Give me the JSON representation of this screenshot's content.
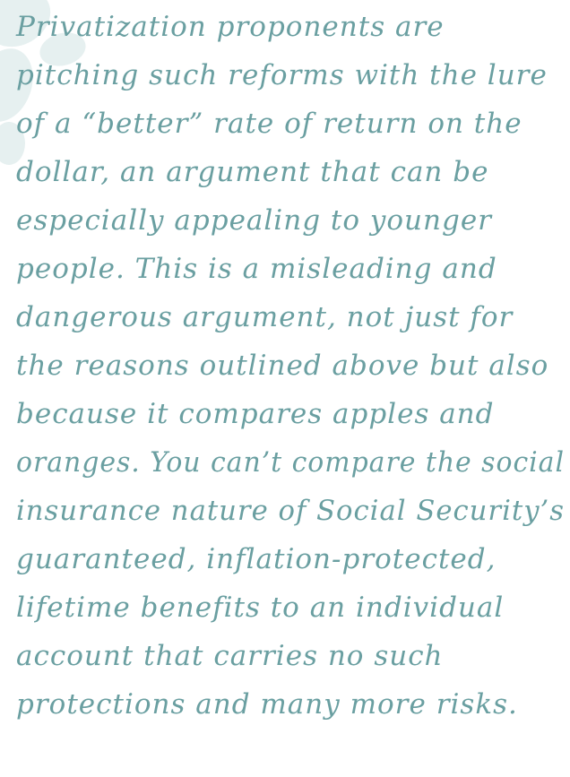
{
  "paragraph": {
    "lines": [
      "Privatization proponents are",
      "pitching such reforms with the lure",
      "of a “better” rate of return on the",
      "dollar, an argument that can be",
      "especially appealing to younger",
      "people. This is a misleading and",
      "dangerous argument, not just for",
      "the reasons outlined above but also",
      "because it compares apples and",
      "oranges. You can’t compare the social",
      "insurance nature of Social Security’s",
      "guaranteed, inflation-protected,",
      "lifetime benefits to an individual",
      "account that carries no such",
      "protections and many more risks."
    ]
  }
}
